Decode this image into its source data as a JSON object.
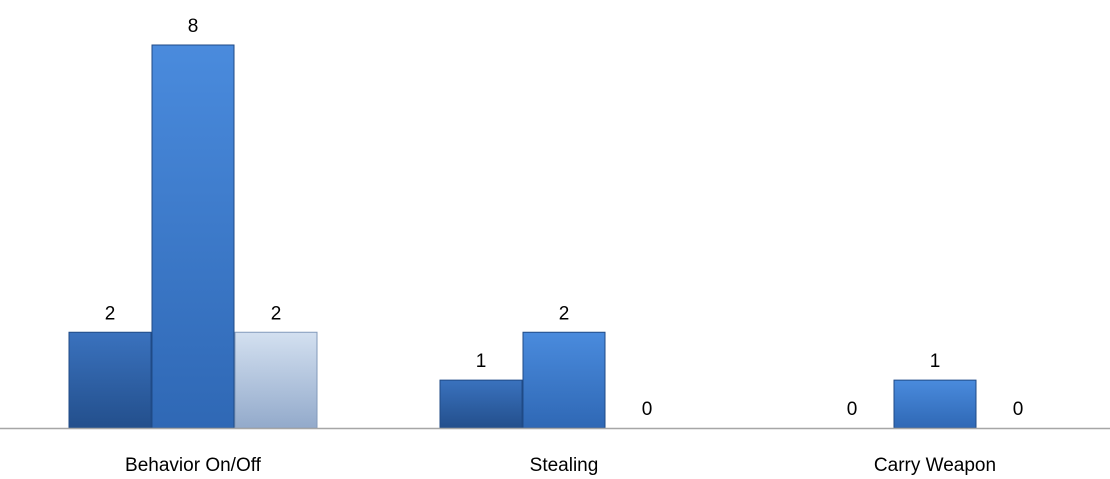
{
  "chart_data": {
    "type": "bar",
    "categories": [
      "Behavior On/Off",
      "Stealing",
      "Carry Weapon"
    ],
    "series": [
      {
        "values": [
          2,
          1,
          0
        ],
        "color": "#2F62A8"
      },
      {
        "values": [
          8,
          2,
          1
        ],
        "color": "#3F7FD1"
      },
      {
        "values": [
          2,
          0,
          0
        ],
        "color": "#AFC3DE"
      }
    ],
    "ylim": [
      0,
      8
    ],
    "grid": false,
    "legend": "none",
    "axis_color": "#A6A6A6"
  }
}
